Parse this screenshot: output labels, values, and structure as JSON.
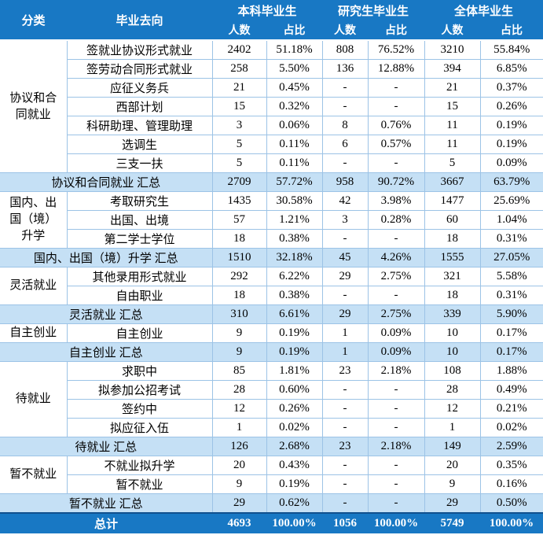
{
  "colors": {
    "header_bg": "#1878C4",
    "header_text": "#FFFFFF",
    "summary_bg": "#C5E0F5",
    "total_bg": "#1878C4",
    "border": "#9CC3E6",
    "body_text": "#000000"
  },
  "header": {
    "category": "分类",
    "destination": "毕业去向",
    "groups": [
      {
        "label": "本科毕业生",
        "sub": [
          "人数",
          "占比"
        ]
      },
      {
        "label": "研究生毕业生",
        "sub": [
          "人数",
          "占比"
        ]
      },
      {
        "label": "全体毕业生",
        "sub": [
          "人数",
          "占比"
        ]
      }
    ]
  },
  "table": {
    "groups": [
      {
        "category": "协议和合\n同就业",
        "rows": [
          {
            "destination": "签就业协议形式就业",
            "values": [
              "2402",
              "51.18%",
              "808",
              "76.52%",
              "3210",
              "55.84%"
            ]
          },
          {
            "destination": "签劳动合同形式就业",
            "values": [
              "258",
              "5.50%",
              "136",
              "12.88%",
              "394",
              "6.85%"
            ]
          },
          {
            "destination": "应征义务兵",
            "values": [
              "21",
              "0.45%",
              "-",
              "-",
              "21",
              "0.37%"
            ]
          },
          {
            "destination": "西部计划",
            "values": [
              "15",
              "0.32%",
              "-",
              "-",
              "15",
              "0.26%"
            ]
          },
          {
            "destination": "科研助理、管理助理",
            "values": [
              "3",
              "0.06%",
              "8",
              "0.76%",
              "11",
              "0.19%"
            ]
          },
          {
            "destination": "选调生",
            "values": [
              "5",
              "0.11%",
              "6",
              "0.57%",
              "11",
              "0.19%"
            ]
          },
          {
            "destination": "三支一扶",
            "values": [
              "5",
              "0.11%",
              "-",
              "-",
              "5",
              "0.09%"
            ]
          }
        ],
        "summary": {
          "label": "协议和合同就业 汇总",
          "values": [
            "2709",
            "57.72%",
            "958",
            "90.72%",
            "3667",
            "63.79%"
          ]
        }
      },
      {
        "category": "国内、出\n国（境）\n升学",
        "rows": [
          {
            "destination": "考取研究生",
            "values": [
              "1435",
              "30.58%",
              "42",
              "3.98%",
              "1477",
              "25.69%"
            ]
          },
          {
            "destination": "出国、出境",
            "values": [
              "57",
              "1.21%",
              "3",
              "0.28%",
              "60",
              "1.04%"
            ]
          },
          {
            "destination": "第二学士学位",
            "values": [
              "18",
              "0.38%",
              "-",
              "-",
              "18",
              "0.31%"
            ]
          }
        ],
        "summary": {
          "label": "国内、出国（境）升学 汇总",
          "values": [
            "1510",
            "32.18%",
            "45",
            "4.26%",
            "1555",
            "27.05%"
          ]
        }
      },
      {
        "category": "灵活就业",
        "rows": [
          {
            "destination": "其他录用形式就业",
            "values": [
              "292",
              "6.22%",
              "29",
              "2.75%",
              "321",
              "5.58%"
            ]
          },
          {
            "destination": "自由职业",
            "values": [
              "18",
              "0.38%",
              "-",
              "-",
              "18",
              "0.31%"
            ]
          }
        ],
        "summary": {
          "label": "灵活就业 汇总",
          "values": [
            "310",
            "6.61%",
            "29",
            "2.75%",
            "339",
            "5.90%"
          ]
        }
      },
      {
        "category": "自主创业",
        "rows": [
          {
            "destination": "自主创业",
            "values": [
              "9",
              "0.19%",
              "1",
              "0.09%",
              "10",
              "0.17%"
            ]
          }
        ],
        "summary": {
          "label": "自主创业 汇总",
          "values": [
            "9",
            "0.19%",
            "1",
            "0.09%",
            "10",
            "0.17%"
          ]
        }
      },
      {
        "category": "待就业",
        "rows": [
          {
            "destination": "求职中",
            "values": [
              "85",
              "1.81%",
              "23",
              "2.18%",
              "108",
              "1.88%"
            ]
          },
          {
            "destination": "拟参加公招考试",
            "values": [
              "28",
              "0.60%",
              "-",
              "-",
              "28",
              "0.49%"
            ]
          },
          {
            "destination": "签约中",
            "values": [
              "12",
              "0.26%",
              "-",
              "-",
              "12",
              "0.21%"
            ]
          },
          {
            "destination": "拟应征入伍",
            "values": [
              "1",
              "0.02%",
              "-",
              "-",
              "1",
              "0.02%"
            ]
          }
        ],
        "summary": {
          "label": "待就业 汇总",
          "values": [
            "126",
            "2.68%",
            "23",
            "2.18%",
            "149",
            "2.59%"
          ]
        }
      },
      {
        "category": "暂不就业",
        "rows": [
          {
            "destination": "不就业拟升学",
            "values": [
              "20",
              "0.43%",
              "-",
              "-",
              "20",
              "0.35%"
            ]
          },
          {
            "destination": "暂不就业",
            "values": [
              "9",
              "0.19%",
              "-",
              "-",
              "9",
              "0.16%"
            ]
          }
        ],
        "summary": {
          "label": "暂不就业 汇总",
          "values": [
            "29",
            "0.62%",
            "-",
            "-",
            "29",
            "0.50%"
          ]
        }
      }
    ],
    "total": {
      "label": "总计",
      "values": [
        "4693",
        "100.00%",
        "1056",
        "100.00%",
        "5749",
        "100.00%"
      ]
    }
  }
}
